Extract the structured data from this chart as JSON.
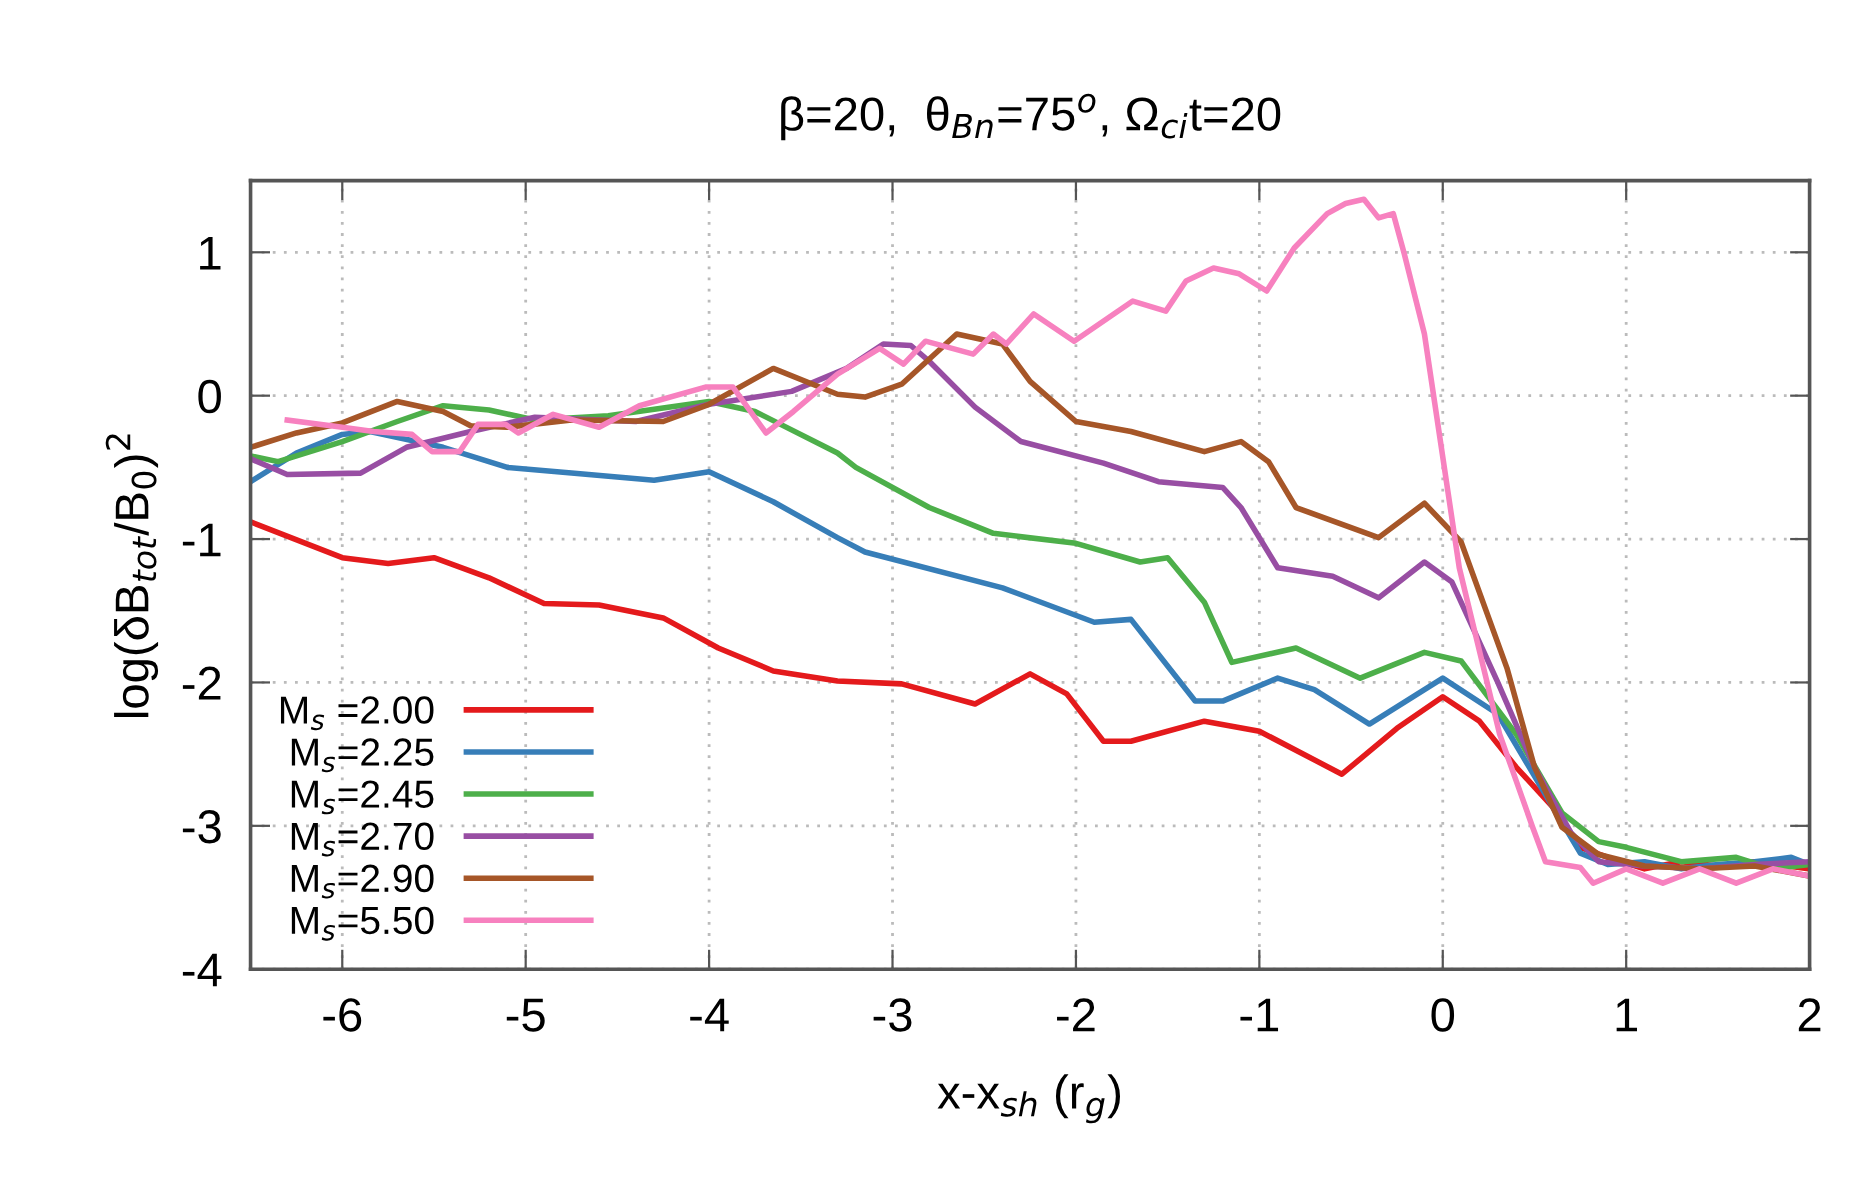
{
  "chart_data": {
    "type": "line",
    "title": "β=20,  θ$_{Bn}$=75$^{o}$, Ω$_{ci}$t=20",
    "xlabel": "x-x$_{sh}$ (r$_{g}$)",
    "ylabel": "log(δB$_{tot}$/B$_{0}$)$^{2}$",
    "xlim": [
      -6.5,
      2
    ],
    "ylim": [
      -4,
      1.5
    ],
    "xticks": [
      -6,
      -5,
      -4,
      -3,
      -2,
      -1,
      0,
      1,
      2
    ],
    "yticks": [
      -4,
      -3,
      -2,
      -1,
      0,
      1
    ],
    "grid": true,
    "legend": "bottom left",
    "marker": "none",
    "line_style": "solid",
    "series": [
      {
        "name": "M$_{s}$ =2.00",
        "color": "#e41a1c",
        "x": [
          -6.5,
          -6.0,
          -5.75,
          -5.5,
          -5.2,
          -4.9,
          -4.6,
          -4.25,
          -3.95,
          -3.65,
          -3.3,
          -2.95,
          -2.55,
          -2.25,
          -2.05,
          -1.85,
          -1.7,
          -1.3,
          -1.0,
          -0.55,
          -0.25,
          0.0,
          0.2,
          0.4,
          0.6,
          0.75,
          0.9,
          1.1,
          1.3,
          1.5,
          1.7,
          2.0
        ],
        "values": [
          -0.88,
          -1.13,
          -1.17,
          -1.13,
          -1.27,
          -1.45,
          -1.46,
          -1.55,
          -1.76,
          -1.92,
          -1.99,
          -2.01,
          -2.15,
          -1.94,
          -2.08,
          -2.41,
          -2.41,
          -2.27,
          -2.34,
          -2.64,
          -2.32,
          -2.1,
          -2.27,
          -2.59,
          -2.87,
          -3.15,
          -3.22,
          -3.3,
          -3.25,
          -3.28,
          -3.25,
          -3.3
        ]
      },
      {
        "name": "M$_{s}$=2.25",
        "color": "#377eb8",
        "x": [
          -6.5,
          -6.25,
          -6.0,
          -5.85,
          -5.45,
          -5.1,
          -4.75,
          -4.3,
          -4.0,
          -3.65,
          -3.3,
          -3.15,
          -2.4,
          -1.9,
          -1.7,
          -1.35,
          -1.2,
          -0.9,
          -0.7,
          -0.4,
          0.0,
          0.3,
          0.6,
          0.75,
          0.9,
          1.1,
          1.3,
          1.5,
          1.7,
          1.9,
          2.0
        ],
        "values": [
          -0.6,
          -0.4,
          -0.27,
          -0.25,
          -0.36,
          -0.5,
          -0.54,
          -0.59,
          -0.53,
          -0.74,
          -0.99,
          -1.09,
          -1.34,
          -1.58,
          -1.56,
          -2.13,
          -2.13,
          -1.97,
          -2.05,
          -2.29,
          -1.97,
          -2.22,
          -2.87,
          -3.19,
          -3.27,
          -3.25,
          -3.3,
          -3.27,
          -3.25,
          -3.22,
          -3.27
        ]
      },
      {
        "name": "M$_{s}$=2.45",
        "color": "#4daf4a",
        "x": [
          -6.5,
          -6.35,
          -6.0,
          -5.7,
          -5.45,
          -5.2,
          -4.95,
          -4.55,
          -4.0,
          -3.75,
          -3.3,
          -3.2,
          -2.8,
          -2.45,
          -2.0,
          -1.65,
          -1.5,
          -1.3,
          -1.15,
          -0.8,
          -0.45,
          -0.1,
          0.1,
          0.4,
          0.65,
          0.85,
          1.0,
          1.3,
          1.6,
          1.8,
          2.0
        ],
        "values": [
          -0.42,
          -0.46,
          -0.32,
          -0.18,
          -0.07,
          -0.1,
          -0.17,
          -0.14,
          -0.04,
          -0.11,
          -0.4,
          -0.5,
          -0.78,
          -0.96,
          -1.03,
          -1.16,
          -1.13,
          -1.44,
          -1.86,
          -1.76,
          -1.97,
          -1.79,
          -1.85,
          -2.36,
          -2.91,
          -3.11,
          -3.15,
          -3.25,
          -3.22,
          -3.3,
          -3.27
        ]
      },
      {
        "name": "M$_{s}$=2.70",
        "color": "#984ea3",
        "x": [
          -6.5,
          -6.3,
          -5.9,
          -5.65,
          -5.3,
          -4.95,
          -4.4,
          -4.0,
          -3.55,
          -3.25,
          -3.05,
          -2.9,
          -2.8,
          -2.55,
          -2.3,
          -1.85,
          -1.55,
          -1.2,
          -1.1,
          -0.9,
          -0.6,
          -0.35,
          -0.1,
          0.05,
          0.3,
          0.5,
          0.7,
          0.85,
          1.1,
          1.4,
          1.7,
          2.0
        ],
        "values": [
          -0.44,
          -0.55,
          -0.54,
          -0.36,
          -0.25,
          -0.15,
          -0.18,
          -0.06,
          0.03,
          0.19,
          0.36,
          0.35,
          0.24,
          -0.08,
          -0.32,
          -0.47,
          -0.6,
          -0.64,
          -0.78,
          -1.2,
          -1.26,
          -1.41,
          -1.16,
          -1.3,
          -2.0,
          -2.59,
          -3.05,
          -3.25,
          -3.28,
          -3.3,
          -3.27,
          -3.25
        ]
      },
      {
        "name": "M$_{s}$=2.90",
        "color": "#a65628",
        "x": [
          -6.5,
          -6.25,
          -6.0,
          -5.7,
          -5.45,
          -5.3,
          -5.1,
          -4.75,
          -4.25,
          -4.0,
          -3.65,
          -3.3,
          -3.15,
          -2.95,
          -2.65,
          -2.4,
          -2.25,
          -2.0,
          -1.7,
          -1.3,
          -1.1,
          -0.95,
          -0.8,
          -0.35,
          -0.1,
          0.1,
          0.35,
          0.5,
          0.65,
          0.85,
          1.1,
          1.4,
          1.7,
          2.0
        ],
        "values": [
          -0.36,
          -0.26,
          -0.19,
          -0.04,
          -0.11,
          -0.21,
          -0.22,
          -0.17,
          -0.18,
          -0.06,
          0.19,
          0.01,
          -0.01,
          0.08,
          0.43,
          0.36,
          0.1,
          -0.18,
          -0.25,
          -0.39,
          -0.32,
          -0.46,
          -0.78,
          -0.99,
          -0.75,
          -1.02,
          -1.9,
          -2.59,
          -3.01,
          -3.2,
          -3.28,
          -3.3,
          -3.28,
          -3.35
        ]
      },
      {
        "name": "M$_{s}$=5.50",
        "color": "#f781bf",
        "x": [
          -6.3,
          -6.0,
          -5.83,
          -5.62,
          -5.51,
          -5.36,
          -5.26,
          -5.11,
          -5.04,
          -4.85,
          -4.6,
          -4.38,
          -4.02,
          -3.87,
          -3.69,
          -3.54,
          -3.3,
          -3.07,
          -2.94,
          -2.82,
          -2.56,
          -2.45,
          -2.38,
          -2.23,
          -2.01,
          -1.69,
          -1.51,
          -1.4,
          -1.25,
          -1.11,
          -0.96,
          -0.81,
          -0.63,
          -0.53,
          -0.43,
          -0.35,
          -0.27,
          -0.21,
          -0.1,
          0.09,
          0.31,
          0.49,
          0.56,
          0.75,
          0.82,
          1.0,
          1.2,
          1.4,
          1.6,
          1.8,
          2.0
        ],
        "values": [
          -0.17,
          -0.22,
          -0.25,
          -0.27,
          -0.39,
          -0.39,
          -0.2,
          -0.2,
          -0.26,
          -0.13,
          -0.22,
          -0.07,
          0.06,
          0.06,
          -0.26,
          -0.11,
          0.15,
          0.33,
          0.22,
          0.38,
          0.29,
          0.43,
          0.36,
          0.57,
          0.38,
          0.66,
          0.59,
          0.8,
          0.89,
          0.85,
          0.73,
          1.03,
          1.27,
          1.34,
          1.37,
          1.24,
          1.27,
          0.99,
          0.43,
          -1.2,
          -2.36,
          -3.01,
          -3.25,
          -3.29,
          -3.4,
          -3.3,
          -3.4,
          -3.3,
          -3.4,
          -3.3,
          -3.35
        ]
      }
    ]
  }
}
